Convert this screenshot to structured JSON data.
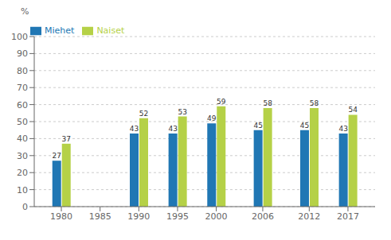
{
  "chart_data": {
    "type": "bar",
    "x": [
      1980,
      1985,
      1990,
      1995,
      2000,
      2006,
      2012,
      2017
    ],
    "series": [
      {
        "name": "Miehet",
        "color": "#2077b4",
        "values": [
          27,
          null,
          43,
          43,
          49,
          45,
          45,
          43
        ]
      },
      {
        "name": "Naiset",
        "color": "#b5d147",
        "values": [
          37,
          null,
          52,
          53,
          59,
          58,
          58,
          54
        ]
      }
    ],
    "xlim": [
      1976.5,
      2020.5
    ],
    "xticks": [
      1980,
      1985,
      1990,
      1995,
      2000,
      2006,
      2012,
      2017
    ],
    "ylim": [
      0,
      100
    ],
    "yticks": [
      0,
      10,
      20,
      30,
      40,
      50,
      60,
      70,
      80,
      90,
      100
    ],
    "ylabel": "%",
    "grid": true,
    "legend": "upper left",
    "data_labels": true
  }
}
